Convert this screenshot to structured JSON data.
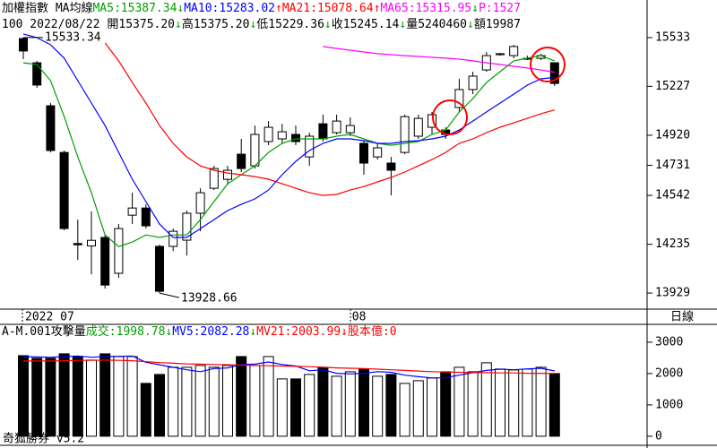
{
  "header": {
    "line1": [
      {
        "text": "加權指數 MA均線",
        "color": "#000000"
      },
      {
        "text": "MA5:15387.34",
        "color": "#00a000"
      },
      {
        "text": "↓",
        "color": "#00a000"
      },
      {
        "text": "MA10:15283.02",
        "color": "#0000ff"
      },
      {
        "text": "↑",
        "color": "#ff0000"
      },
      {
        "text": "MA21:15078.64",
        "color": "#ff0000"
      },
      {
        "text": "↑",
        "color": "#ff0000"
      },
      {
        "text": "MA65:15315.95",
        "color": "#ff00ff"
      },
      {
        "text": "↓",
        "color": "#00a000"
      },
      {
        "text": "P:1527",
        "color": "#ff00ff"
      }
    ],
    "line2": [
      {
        "text": "100 2022/08/22 開15375.20",
        "color": "#000000"
      },
      {
        "text": "↓",
        "color": "#00a000"
      },
      {
        "text": "高15375.20",
        "color": "#000000"
      },
      {
        "text": "↓",
        "color": "#00a000"
      },
      {
        "text": "低15229.36",
        "color": "#000000"
      },
      {
        "text": "↓",
        "color": "#00a000"
      },
      {
        "text": "收15245.14",
        "color": "#000000"
      },
      {
        "text": "↓",
        "color": "#00a000"
      },
      {
        "text": "量5240460",
        "color": "#000000"
      },
      {
        "text": "↓",
        "color": "#00a000"
      },
      {
        "text": "額19987",
        "color": "#000000"
      }
    ],
    "period": "日線",
    "footer": "奇狐勝券 v5.2"
  },
  "chart_data": [
    {
      "type": "candlestick",
      "categories": [
        "2022 07",
        null,
        null,
        null,
        null,
        null,
        null,
        null,
        null,
        null,
        null,
        null,
        null,
        null,
        null,
        null,
        null,
        null,
        null,
        null,
        null,
        null,
        null,
        null,
        "08",
        null,
        null,
        null,
        null,
        null,
        null,
        null,
        null,
        null,
        null,
        null,
        null,
        null,
        null,
        null
      ],
      "open": [
        15527,
        15375,
        15105,
        14812,
        14240,
        14225,
        14278,
        14053,
        14418,
        14463,
        14222,
        14222,
        14261,
        14430,
        14587,
        14643,
        14801,
        14728,
        14880,
        14897,
        14925,
        14784,
        14992,
        14936,
        14936,
        14869,
        14784,
        14745,
        14812,
        14914,
        14970,
        14953,
        15094,
        15207,
        15330,
        15426,
        15420,
        15398,
        15403,
        15375.2
      ],
      "high": [
        15533.34,
        15387,
        15122,
        14824,
        14390,
        14441,
        14295,
        14362,
        14559,
        14486,
        14233,
        14334,
        14447,
        14587,
        14728,
        14728,
        14897,
        14981,
        15009,
        14992,
        14981,
        14936,
        15049,
        15049,
        15032,
        14886,
        14869,
        14784,
        15049,
        15049,
        15066,
        14970,
        15274,
        15319,
        15443,
        15437,
        15488,
        15420,
        15432,
        15375.2
      ],
      "low": [
        15398,
        15218,
        14812,
        14323,
        14137,
        14047,
        13957,
        14024,
        14362,
        14334,
        13928.66,
        14193,
        14165,
        14317,
        14576,
        14610,
        14688,
        14711,
        14858,
        14869,
        14858,
        14728,
        14880,
        14925,
        14914,
        14672,
        14767,
        14542,
        14801,
        14897,
        14925,
        14897,
        15066,
        15178,
        15319,
        15420,
        15403,
        15392,
        15392,
        15229.36
      ],
      "close": [
        15449,
        15235,
        14824,
        14334,
        14232,
        14260,
        13979,
        14334,
        14463,
        14351,
        13940,
        14317,
        14430,
        14559,
        14711,
        14700,
        14711,
        14925,
        14970,
        14942,
        14880,
        14914,
        14897,
        15009,
        14981,
        14745,
        14841,
        14700,
        15037,
        15026,
        15049,
        14925,
        15207,
        15291,
        15420,
        15432,
        15477,
        15403,
        15420,
        15245.14
      ],
      "up_color": "#ffffff",
      "down_color": "#000000",
      "series": [
        {
          "color": "#00a000",
          "values": [
            15375,
            15364,
            15263,
            15038,
            14784,
            14559,
            14294,
            14221,
            14249,
            14294,
            14278,
            14294,
            14294,
            14390,
            14503,
            14615,
            14672,
            14728,
            14812,
            14869,
            14897,
            14897,
            14897,
            14914,
            14925,
            14897,
            14869,
            14857,
            14869,
            14880,
            14925,
            14953,
            15066,
            15150,
            15251,
            15319,
            15387,
            15404,
            15420,
            15387.34
          ]
        },
        {
          "color": "#0000ff",
          "values": [
            15556,
            15533,
            15488,
            15404,
            15263,
            15122,
            14981,
            14812,
            14644,
            14503,
            14362,
            14278,
            14278,
            14334,
            14390,
            14447,
            14486,
            14520,
            14576,
            14672,
            14756,
            14824,
            14869,
            14897,
            14897,
            14886,
            14869,
            14869,
            14880,
            14886,
            14897,
            14914,
            14953,
            15009,
            15066,
            15122,
            15178,
            15235,
            15274,
            15283.02
          ]
        },
        {
          "color": "#ff0000",
          "values": [
            null,
            null,
            null,
            null,
            null,
            null,
            15499,
            15387,
            15251,
            15122,
            14981,
            14869,
            14784,
            14728,
            14700,
            14683,
            14672,
            14660,
            14644,
            14615,
            14587,
            14559,
            14542,
            14548,
            14576,
            14598,
            14627,
            14655,
            14689,
            14728,
            14767,
            14812,
            14869,
            14897,
            14936,
            14970,
            14998,
            15026,
            15055,
            15078.64
          ]
        },
        {
          "color": "#ff00ff",
          "values": [
            null,
            null,
            null,
            null,
            null,
            null,
            null,
            null,
            null,
            null,
            null,
            null,
            null,
            null,
            null,
            null,
            null,
            null,
            null,
            null,
            null,
            null,
            15477,
            15465,
            15454,
            15443,
            15432,
            15426,
            15420,
            15415,
            15409,
            15404,
            15398,
            15387,
            15375,
            15364,
            15353,
            15342,
            15330,
            15315.95
          ]
        }
      ],
      "annotations": {
        "max_label": "15533.34",
        "min_label": "13928.66"
      },
      "ylim": [
        13828,
        15668
      ],
      "yticks": [
        15533,
        15227,
        14920,
        14731,
        14542,
        14235,
        13929
      ]
    },
    {
      "type": "bar",
      "header": [
        {
          "text": "A-M.001攻擊量",
          "color": "#000000"
        },
        {
          "text": "成交:1998.78",
          "color": "#00a000"
        },
        {
          "text": "↓",
          "color": "#00a000"
        },
        {
          "text": "MV5:2082.28",
          "color": "#0000ff"
        },
        {
          "text": "↓",
          "color": "#00a000"
        },
        {
          "text": "MV21:2003.99",
          "color": "#ff0000"
        },
        {
          "text": "↓股本億:0",
          "color": "#ff0000"
        }
      ],
      "values": [
        2571,
        2486,
        2486,
        2629,
        2543,
        2429,
        2629,
        2543,
        2543,
        1686,
        1971,
        2200,
        2200,
        2257,
        2200,
        2257,
        2543,
        2257,
        2543,
        1829,
        1829,
        1971,
        2200,
        1914,
        2057,
        2143,
        1914,
        1971,
        1686,
        1771,
        1857,
        2057,
        2200,
        2057,
        2343,
        2143,
        2114,
        2143,
        2200,
        1998.78
      ],
      "series": [
        {
          "color": "#0000ff",
          "values": [
            2540,
            2530,
            2520,
            2540,
            2560,
            2520,
            2540,
            2550,
            2560,
            2360,
            2280,
            2200,
            2120,
            2060,
            2160,
            2180,
            2290,
            2300,
            2370,
            2290,
            2240,
            2090,
            2120,
            2010,
            1990,
            2010,
            2060,
            2040,
            1950,
            1900,
            1860,
            1870,
            1950,
            2030,
            2100,
            2140,
            2120,
            2150,
            2170,
            2082.28
          ]
        },
        {
          "color": "#ff0000",
          "values": [
            2400,
            2400,
            2400,
            2410,
            2420,
            2420,
            2430,
            2420,
            2410,
            2380,
            2350,
            2330,
            2310,
            2300,
            2290,
            2280,
            2270,
            2260,
            2250,
            2240,
            2230,
            2220,
            2200,
            2180,
            2170,
            2160,
            2140,
            2120,
            2100,
            2080,
            2060,
            2050,
            2040,
            2030,
            2030,
            2020,
            2020,
            2010,
            2010,
            2003.99
          ]
        }
      ],
      "ylim": [
        -290,
        3570
      ],
      "yticks": [
        0,
        1000,
        2000,
        3000
      ]
    }
  ]
}
